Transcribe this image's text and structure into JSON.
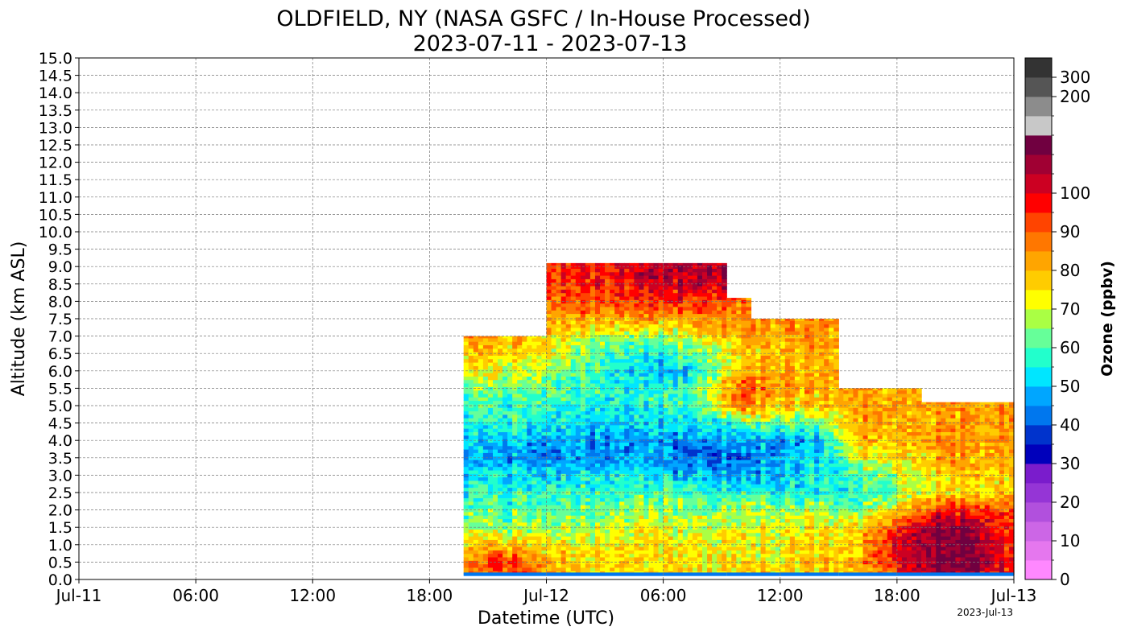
{
  "chart_data": {
    "type": "heatmap",
    "title": "OLDFIELD, NY (NASA GSFC / In-House Processed)",
    "subtitle": "2023-07-11 - 2023-07-13",
    "xlabel": "Datetime (UTC)",
    "ylabel": "Altitude (km ASL)",
    "colorbar_label": "Ozone ($ppb_v$)",
    "colorbar_label_text": "Ozone (ppbv)",
    "footer_date": "2023-Jul-13",
    "x_range_hours": [
      0,
      48
    ],
    "x_ticks": [
      {
        "hour": 0,
        "label": "Jul-11"
      },
      {
        "hour": 6,
        "label": "06:00"
      },
      {
        "hour": 12,
        "label": "12:00"
      },
      {
        "hour": 18,
        "label": "18:00"
      },
      {
        "hour": 24,
        "label": "Jul-12"
      },
      {
        "hour": 30,
        "label": "06:00"
      },
      {
        "hour": 36,
        "label": "12:00"
      },
      {
        "hour": 42,
        "label": "18:00"
      },
      {
        "hour": 48,
        "label": "Jul-13"
      }
    ],
    "y_range_km": [
      0,
      15
    ],
    "y_ticks": [
      "0.0",
      "0.5",
      "1.0",
      "1.5",
      "2.0",
      "2.5",
      "3.0",
      "3.5",
      "4.0",
      "4.5",
      "5.0",
      "5.5",
      "6.0",
      "6.5",
      "7.0",
      "7.5",
      "8.0",
      "8.5",
      "9.0",
      "9.5",
      "10.0",
      "10.5",
      "11.0",
      "11.5",
      "12.0",
      "12.5",
      "13.0",
      "13.5",
      "14.0",
      "14.5",
      "15.0"
    ],
    "grid": true,
    "colorbar": {
      "bins": [
        {
          "from": 0,
          "to": 5,
          "color": "#ff88ff"
        },
        {
          "from": 5,
          "to": 10,
          "color": "#e577ee"
        },
        {
          "from": 10,
          "to": 15,
          "color": "#cc66e6"
        },
        {
          "from": 15,
          "to": 20,
          "color": "#b150dd"
        },
        {
          "from": 20,
          "to": 25,
          "color": "#9535d6"
        },
        {
          "from": 25,
          "to": 30,
          "color": "#7a1ccc"
        },
        {
          "from": 30,
          "to": 35,
          "color": "#0000bb"
        },
        {
          "from": 35,
          "to": 40,
          "color": "#0033cc"
        },
        {
          "from": 40,
          "to": 45,
          "color": "#0077ee"
        },
        {
          "from": 45,
          "to": 50,
          "color": "#00a6ff"
        },
        {
          "from": 50,
          "to": 55,
          "color": "#00e6ff"
        },
        {
          "from": 55,
          "to": 60,
          "color": "#22ffcc"
        },
        {
          "from": 60,
          "to": 65,
          "color": "#66ff99"
        },
        {
          "from": 65,
          "to": 70,
          "color": "#aaff44"
        },
        {
          "from": 70,
          "to": 75,
          "color": "#ffff00"
        },
        {
          "from": 75,
          "to": 80,
          "color": "#ffcc00"
        },
        {
          "from": 80,
          "to": 85,
          "color": "#ffa500"
        },
        {
          "from": 85,
          "to": 90,
          "color": "#ff7700"
        },
        {
          "from": 90,
          "to": 95,
          "color": "#ff4400"
        },
        {
          "from": 95,
          "to": 100,
          "color": "#ff0000"
        },
        {
          "from": 100,
          "to": 105,
          "color": "#cc0022"
        },
        {
          "from": 105,
          "to": 110,
          "color": "#a00033"
        },
        {
          "from": 110,
          "to": 125,
          "color": "#700040"
        },
        {
          "from": 125,
          "to": 150,
          "color": "#c8c8c8"
        },
        {
          "from": 150,
          "to": 200,
          "color": "#8c8c8c"
        },
        {
          "from": 200,
          "to": 300,
          "color": "#555555"
        },
        {
          "from": 300,
          "to": 400,
          "color": "#333333"
        }
      ],
      "tick_labels": [
        {
          "value": 0,
          "label": "0"
        },
        {
          "value": 10,
          "label": "10"
        },
        {
          "value": 20,
          "label": "20"
        },
        {
          "value": 30,
          "label": "30"
        },
        {
          "value": 40,
          "label": "40"
        },
        {
          "value": 50,
          "label": "50"
        },
        {
          "value": 60,
          "label": "60"
        },
        {
          "value": 70,
          "label": "70"
        },
        {
          "value": 80,
          "label": "80"
        },
        {
          "value": 90,
          "label": "90"
        },
        {
          "value": 100,
          "label": "100"
        },
        {
          "value": 200,
          "label": "200"
        },
        {
          "value": 300,
          "label": "300"
        }
      ]
    },
    "coverage": [
      {
        "start_hour": 19.75,
        "end_hour": 24.0,
        "top_km": 7.0
      },
      {
        "start_hour": 24.0,
        "end_hour": 33.25,
        "top_km": 9.1
      },
      {
        "start_hour": 33.25,
        "end_hour": 34.5,
        "top_km": 8.1
      },
      {
        "start_hour": 34.5,
        "end_hour": 39.0,
        "top_km": 7.5
      },
      {
        "start_hour": 39.0,
        "end_hour": 43.25,
        "top_km": 5.5
      },
      {
        "start_hour": 43.25,
        "end_hour": 48.0,
        "top_km": 5.1
      }
    ],
    "ozone_field": {
      "altitudes_km": [
        0.15,
        0.5,
        1.0,
        1.5,
        2.0,
        2.5,
        3.0,
        3.5,
        4.0,
        4.5,
        5.0,
        5.5,
        6.0,
        6.5,
        7.0,
        7.5,
        8.0,
        8.5,
        9.0
      ],
      "profiles": [
        {
          "hour": 20,
          "values": [
            84,
            84,
            78,
            68,
            62,
            58,
            54,
            48,
            52,
            56,
            60,
            66,
            74,
            80,
            84,
            null,
            null,
            null,
            null
          ]
        },
        {
          "hour": 22,
          "values": [
            92,
            96,
            80,
            66,
            62,
            58,
            54,
            46,
            50,
            56,
            60,
            64,
            70,
            76,
            80,
            null,
            null,
            null,
            null
          ]
        },
        {
          "hour": 24,
          "values": [
            84,
            82,
            74,
            66,
            62,
            58,
            52,
            44,
            48,
            54,
            58,
            62,
            66,
            72,
            78,
            84,
            88,
            92,
            92
          ]
        },
        {
          "hour": 26,
          "values": [
            76,
            76,
            72,
            68,
            62,
            58,
            54,
            46,
            46,
            52,
            56,
            58,
            60,
            64,
            70,
            82,
            90,
            96,
            96
          ]
        },
        {
          "hour": 28,
          "values": [
            76,
            76,
            74,
            70,
            64,
            60,
            54,
            46,
            46,
            50,
            54,
            56,
            54,
            58,
            66,
            82,
            92,
            98,
            100
          ]
        },
        {
          "hour": 30,
          "values": [
            76,
            76,
            74,
            70,
            66,
            60,
            52,
            44,
            46,
            52,
            56,
            56,
            46,
            54,
            64,
            80,
            94,
            102,
            104
          ]
        },
        {
          "hour": 32,
          "values": [
            76,
            76,
            74,
            72,
            66,
            60,
            50,
            42,
            46,
            54,
            62,
            64,
            58,
            66,
            76,
            86,
            96,
            104,
            106
          ]
        },
        {
          "hour": 34,
          "values": [
            76,
            76,
            74,
            72,
            68,
            58,
            46,
            42,
            48,
            60,
            88,
            90,
            82,
            76,
            82,
            86,
            null,
            null,
            null
          ]
        },
        {
          "hour": 36,
          "values": [
            76,
            76,
            74,
            72,
            68,
            56,
            50,
            50,
            46,
            64,
            78,
            84,
            82,
            80,
            82,
            84,
            null,
            null,
            null
          ]
        },
        {
          "hour": 38,
          "values": [
            78,
            78,
            76,
            74,
            66,
            56,
            54,
            52,
            48,
            64,
            76,
            80,
            80,
            80,
            82,
            84,
            null,
            null,
            null
          ]
        },
        {
          "hour": 40,
          "values": [
            82,
            82,
            80,
            78,
            66,
            56,
            60,
            70,
            80,
            84,
            84,
            84,
            null,
            null,
            null,
            null,
            null,
            null,
            null
          ]
        },
        {
          "hour": 42,
          "values": [
            90,
            104,
            104,
            96,
            78,
            68,
            70,
            76,
            82,
            84,
            84,
            84,
            null,
            null,
            null,
            null,
            null,
            null,
            null
          ]
        },
        {
          "hour": 44,
          "values": [
            110,
            112,
            112,
            112,
            96,
            76,
            76,
            80,
            84,
            82,
            82,
            null,
            null,
            null,
            null,
            null,
            null,
            null,
            null
          ]
        },
        {
          "hour": 46,
          "values": [
            104,
            112,
            112,
            110,
            96,
            76,
            78,
            82,
            84,
            84,
            84,
            null,
            null,
            null,
            null,
            null,
            null,
            null,
            null
          ]
        },
        {
          "hour": 48,
          "values": [
            92,
            94,
            94,
            92,
            90,
            78,
            78,
            82,
            84,
            84,
            84,
            null,
            null,
            null,
            null,
            null,
            null,
            null,
            null
          ]
        }
      ]
    }
  }
}
